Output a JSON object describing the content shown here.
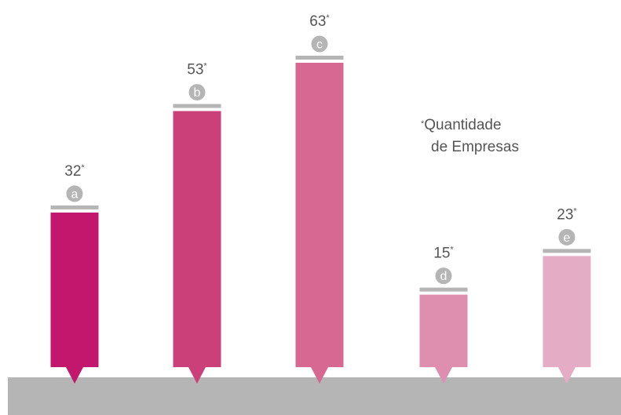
{
  "chart_data": {
    "type": "bar",
    "categories": [
      "a",
      "b",
      "c",
      "d",
      "e"
    ],
    "values": [
      32,
      53,
      63,
      15,
      23
    ],
    "value_suffix": "*",
    "colors": [
      "#c2176d",
      "#cb4079",
      "#d66891",
      "#de8eae",
      "#e4adc5"
    ],
    "label_circle_color": "#b5b5b5",
    "cap_color": "#b5b5b5",
    "base_color": "#b5b5b5",
    "value_text_color": "#555555",
    "ylim": [
      0,
      63
    ],
    "grid": false,
    "legend": "middle-right",
    "note_line1": "Quantidade",
    "note_line2": "de Empresas",
    "note_marker": "*"
  }
}
